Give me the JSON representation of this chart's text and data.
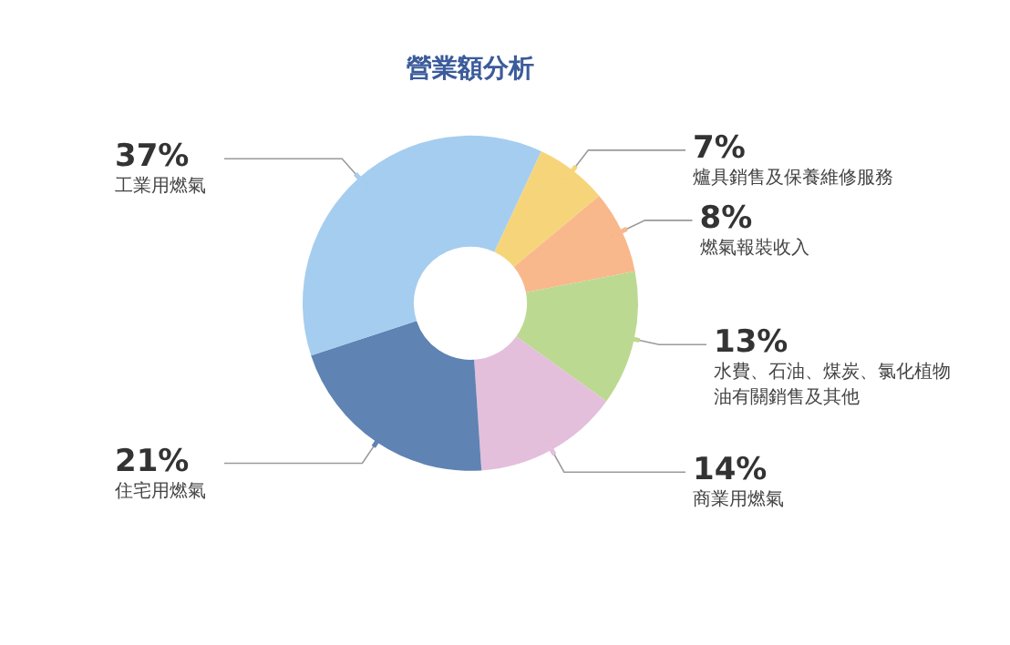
{
  "chart_data": {
    "type": "donut",
    "title": "營業額分析",
    "categories": [
      "爐具銷售及保養維修服務",
      "燃氣報裝收入",
      "水費、石油、煤炭、氯化植物油有關銷售及其他",
      "商業用燃氣",
      "住宅用燃氣",
      "工業用燃氣"
    ],
    "values": [
      7,
      8,
      13,
      14,
      21,
      37
    ],
    "colors": [
      "#f6d57a",
      "#f8b88c",
      "#bcd991",
      "#e3bfdc",
      "#5f83b3",
      "#a5cdef"
    ],
    "value_labels": [
      "7%",
      "8%",
      "13%",
      "14%",
      "21%",
      "37%"
    ]
  }
}
